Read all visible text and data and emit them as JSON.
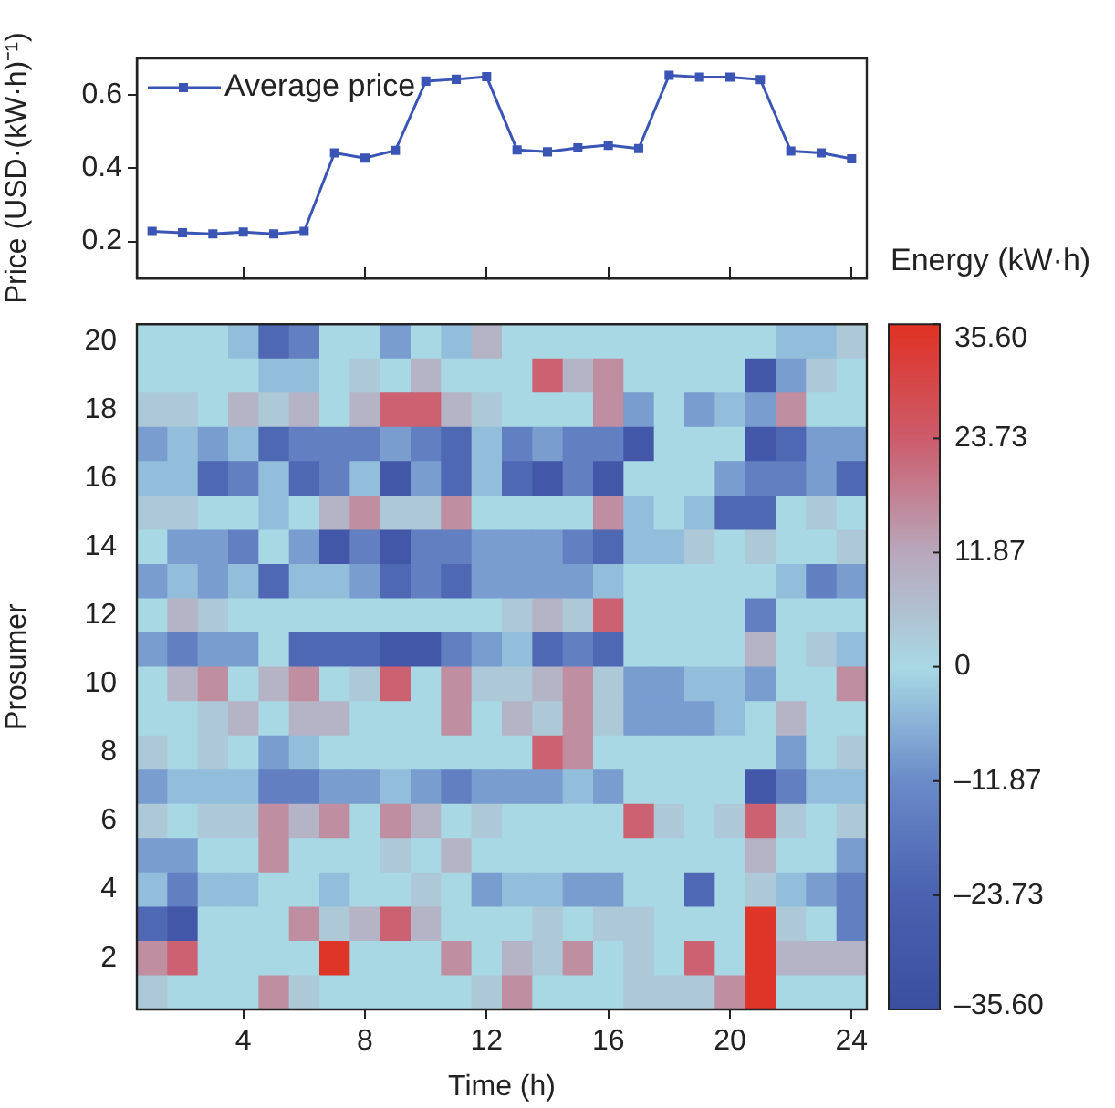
{
  "chart_data": [
    {
      "type": "line",
      "ylabel": "Price (USD·(kW·h)⁻¹)",
      "categories": [
        null,
        null,
        null,
        "4",
        null,
        null,
        null,
        "8",
        null,
        null,
        null,
        "12",
        null,
        null,
        null,
        "16",
        null,
        null,
        null,
        "20",
        null,
        null,
        null,
        "24"
      ],
      "series": [
        {
          "name": "Average price",
          "color": "#3b55b5",
          "values": [
            0.228,
            0.224,
            0.221,
            0.226,
            0.221,
            0.228,
            0.442,
            0.428,
            0.449,
            0.638,
            0.643,
            0.65,
            0.45,
            0.445,
            0.456,
            0.463,
            0.454,
            0.654,
            0.649,
            0.649,
            0.642,
            0.447,
            0.442,
            0.426
          ]
        }
      ],
      "ylim": [
        0.1,
        0.7
      ],
      "yticks": [
        0.2,
        0.4,
        0.6
      ],
      "tick_labels": "y",
      "legend": "top left",
      "marker": "square"
    },
    {
      "type": "heatmap",
      "xlabel": "Time (h)",
      "ylabel": "Prosumer",
      "clabel": "Energy (kW·h)",
      "categories": [
        null,
        null,
        null,
        "4",
        null,
        null,
        null,
        "8",
        null,
        null,
        null,
        "12",
        null,
        null,
        null,
        "16",
        null,
        null,
        null,
        "20",
        null,
        null,
        null,
        "24"
      ],
      "y_categories": [
        "20",
        null,
        "18",
        null,
        "16",
        null,
        "14",
        null,
        "12",
        null,
        "10",
        null,
        "8",
        null,
        "6",
        null,
        "4",
        null,
        "2",
        null
      ],
      "cells": [
        [
          0,
          0,
          0,
          -4,
          -22,
          -15,
          0,
          0,
          -9,
          0,
          -4,
          9,
          0,
          0,
          0,
          0,
          0,
          0,
          0,
          0,
          0,
          -4,
          -4,
          4
        ],
        [
          0,
          0,
          0,
          0,
          -4,
          -4,
          0,
          4,
          0,
          9,
          0,
          0,
          0,
          23,
          9,
          16,
          0,
          0,
          0,
          0,
          -30,
          -9,
          4,
          0
        ],
        [
          4,
          4,
          0,
          9,
          4,
          9,
          0,
          9,
          23,
          23,
          9,
          4,
          0,
          0,
          0,
          16,
          -9,
          0,
          -9,
          -4,
          -9,
          16,
          0,
          0
        ],
        [
          -9,
          -4,
          -9,
          -4,
          -22,
          -15,
          -15,
          -15,
          -9,
          -15,
          -22,
          -4,
          -15,
          -9,
          -15,
          -15,
          -30,
          0,
          0,
          0,
          -30,
          -22,
          -9,
          -9
        ],
        [
          -4,
          -4,
          -22,
          -15,
          -4,
          -22,
          -15,
          -4,
          -30,
          -9,
          -22,
          -4,
          -22,
          -30,
          -15,
          -30,
          0,
          0,
          0,
          -9,
          -15,
          -15,
          -9,
          -22
        ],
        [
          4,
          4,
          0,
          0,
          -4,
          0,
          9,
          16,
          4,
          4,
          16,
          0,
          0,
          0,
          0,
          16,
          -4,
          0,
          -4,
          -22,
          -22,
          0,
          4,
          0
        ],
        [
          0,
          -9,
          -9,
          -15,
          0,
          -9,
          -30,
          -15,
          -30,
          -15,
          -15,
          -9,
          -9,
          -9,
          -15,
          -22,
          -4,
          -4,
          4,
          0,
          4,
          0,
          0,
          4
        ],
        [
          -9,
          -4,
          -9,
          -4,
          -22,
          -4,
          -4,
          -9,
          -22,
          -15,
          -22,
          -9,
          -9,
          -9,
          -9,
          -4,
          0,
          0,
          0,
          0,
          0,
          -4,
          -15,
          -9
        ],
        [
          0,
          9,
          4,
          0,
          0,
          0,
          0,
          0,
          0,
          0,
          0,
          0,
          4,
          9,
          4,
          23,
          0,
          0,
          0,
          0,
          -15,
          0,
          0,
          0
        ],
        [
          -9,
          -15,
          -9,
          -9,
          0,
          -22,
          -22,
          -22,
          -30,
          -30,
          -15,
          -9,
          -4,
          -22,
          -15,
          -22,
          0,
          0,
          0,
          0,
          9,
          0,
          4,
          -4
        ],
        [
          0,
          9,
          16,
          0,
          9,
          16,
          0,
          4,
          23,
          0,
          16,
          4,
          4,
          9,
          16,
          4,
          -9,
          -9,
          -4,
          -4,
          -9,
          0,
          0,
          16
        ],
        [
          0,
          0,
          4,
          9,
          0,
          9,
          9,
          0,
          0,
          0,
          16,
          0,
          9,
          4,
          16,
          4,
          -9,
          -9,
          -9,
          -4,
          0,
          9,
          0,
          0
        ],
        [
          4,
          0,
          4,
          0,
          -9,
          -4,
          0,
          0,
          0,
          0,
          0,
          0,
          0,
          23,
          16,
          0,
          0,
          0,
          0,
          0,
          0,
          -9,
          0,
          4
        ],
        [
          -9,
          -4,
          -4,
          -4,
          -15,
          -15,
          -9,
          -9,
          -4,
          -9,
          -15,
          -9,
          -9,
          -9,
          -4,
          -9,
          0,
          0,
          0,
          0,
          -30,
          -15,
          -4,
          -4
        ],
        [
          4,
          0,
          4,
          4,
          16,
          9,
          16,
          0,
          16,
          9,
          0,
          4,
          0,
          0,
          0,
          0,
          23,
          4,
          0,
          4,
          23,
          4,
          0,
          4
        ],
        [
          -9,
          -9,
          0,
          0,
          16,
          0,
          0,
          0,
          4,
          0,
          9,
          0,
          0,
          0,
          0,
          0,
          0,
          0,
          0,
          0,
          9,
          0,
          0,
          -9
        ],
        [
          -4,
          -15,
          -4,
          -4,
          0,
          0,
          -4,
          0,
          0,
          4,
          0,
          -9,
          -4,
          -4,
          -9,
          -9,
          0,
          0,
          -22,
          0,
          4,
          -4,
          -9,
          -15
        ],
        [
          -22,
          -30,
          0,
          0,
          0,
          16,
          4,
          9,
          23,
          9,
          0,
          0,
          0,
          4,
          0,
          4,
          4,
          0,
          0,
          0,
          35,
          4,
          0,
          -15
        ],
        [
          16,
          23,
          0,
          0,
          0,
          0,
          35,
          0,
          0,
          0,
          16,
          0,
          9,
          4,
          16,
          0,
          4,
          0,
          23,
          0,
          35,
          9,
          9,
          9
        ],
        [
          4,
          0,
          0,
          0,
          16,
          4,
          0,
          0,
          0,
          0,
          0,
          4,
          16,
          0,
          0,
          0,
          4,
          4,
          4,
          16,
          35,
          0,
          0,
          0
        ]
      ],
      "clim": [
        -35.6,
        35.6
      ],
      "cticks": [
        {
          "value": 35.6,
          "label": "35.60"
        },
        {
          "value": 23.73,
          "label": "23.73"
        },
        {
          "value": 11.87,
          "label": "11.87"
        },
        0,
        {
          "value": -11.87,
          "label": "–11.87"
        },
        {
          "value": -23.73,
          "label": "–23.73"
        },
        {
          "value": -35.6,
          "label": "–35.60"
        }
      ]
    }
  ]
}
